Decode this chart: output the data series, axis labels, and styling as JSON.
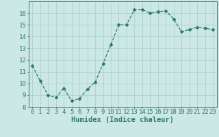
{
  "x": [
    0,
    1,
    2,
    3,
    4,
    5,
    6,
    7,
    8,
    9,
    10,
    11,
    12,
    13,
    14,
    15,
    16,
    17,
    18,
    19,
    20,
    21,
    22,
    23
  ],
  "y": [
    11.5,
    10.2,
    9.0,
    8.8,
    9.6,
    8.5,
    8.7,
    9.5,
    10.1,
    11.7,
    13.3,
    15.0,
    15.0,
    16.3,
    16.3,
    16.0,
    16.1,
    16.2,
    15.5,
    14.4,
    14.6,
    14.8,
    14.7,
    14.6
  ],
  "line_color": "#2d7a6e",
  "bg_color": "#cce8e4",
  "grid_color": "#afd0cc",
  "xlabel": "Humidex (Indice chaleur)",
  "ylim": [
    8,
    17
  ],
  "xlim": [
    -0.5,
    23.5
  ],
  "yticks": [
    8,
    9,
    10,
    11,
    12,
    13,
    14,
    15,
    16
  ],
  "xticks": [
    0,
    1,
    2,
    3,
    4,
    5,
    6,
    7,
    8,
    9,
    10,
    11,
    12,
    13,
    14,
    15,
    16,
    17,
    18,
    19,
    20,
    21,
    22,
    23
  ],
  "xtick_labels": [
    "0",
    "1",
    "2",
    "3",
    "4",
    "5",
    "6",
    "7",
    "8",
    "9",
    "10",
    "11",
    "12",
    "13",
    "14",
    "15",
    "16",
    "17",
    "18",
    "19",
    "20",
    "21",
    "22",
    "23"
  ],
  "tick_fontsize": 6.5,
  "label_fontsize": 7.5,
  "marker": "D",
  "markersize": 2.0,
  "linewidth": 0.9
}
